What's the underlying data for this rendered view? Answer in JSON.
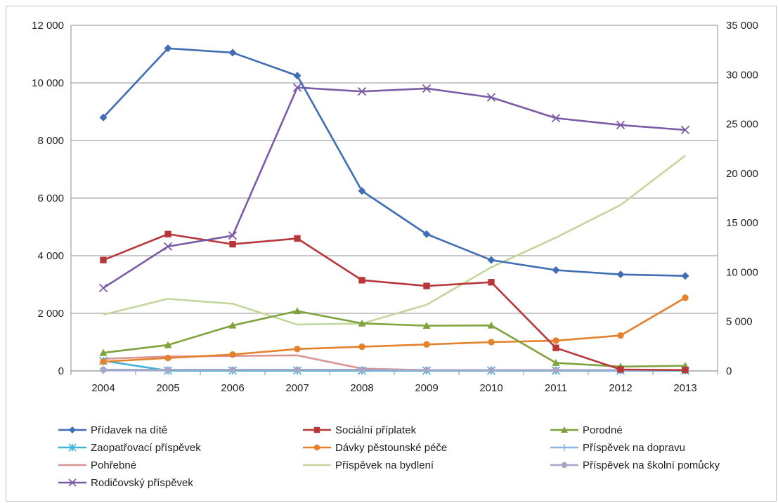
{
  "chart_data": {
    "type": "line",
    "title": "",
    "xlabel": "",
    "ylabel": "",
    "categories": [
      "2004",
      "2005",
      "2006",
      "2007",
      "2008",
      "2009",
      "2010",
      "2011",
      "2012",
      "2013"
    ],
    "y_left": {
      "range": [
        0,
        12000
      ],
      "ticks": [
        "0",
        "2 000",
        "4 000",
        "6 000",
        "8 000",
        "10 000",
        "12 000"
      ]
    },
    "y_right": {
      "range": [
        0,
        35000
      ],
      "ticks": [
        "0",
        "5 000",
        "10 000",
        "15 000",
        "20 000",
        "25 000",
        "30 000",
        "35 000"
      ]
    },
    "grid": true,
    "legend_position": "bottom",
    "series": [
      {
        "name": "Přídavek na dítě",
        "axis": "left",
        "color": "#3f6eb4",
        "marker": "diamond",
        "values": [
          8800,
          11200,
          11050,
          10250,
          6250,
          4750,
          3850,
          3500,
          3350,
          3300
        ]
      },
      {
        "name": "Sociální příplatek",
        "axis": "left",
        "color": "#b8373a",
        "marker": "square",
        "values": [
          3850,
          4750,
          4400,
          4600,
          3150,
          2950,
          3080,
          800,
          50,
          30
        ]
      },
      {
        "name": "Porodné",
        "axis": "left",
        "color": "#7ea33d",
        "marker": "triangle",
        "values": [
          630,
          900,
          1580,
          2080,
          1650,
          1570,
          1580,
          280,
          150,
          180
        ]
      },
      {
        "name": "Zaopatřovací příspěvek",
        "axis": "left",
        "color": "#3fb1d9",
        "marker": "star",
        "values": [
          350,
          10,
          10,
          10,
          10,
          10,
          10,
          10,
          10,
          10
        ]
      },
      {
        "name": "Dávky pěstounské péče",
        "axis": "left",
        "color": "#e5802c",
        "marker": "circle",
        "values": [
          320,
          450,
          570,
          760,
          840,
          920,
          1000,
          1050,
          1230,
          2540
        ]
      },
      {
        "name": "Příspěvek na dopravu",
        "axis": "left",
        "color": "#8eb4e3",
        "marker": "plus",
        "values": [
          20,
          20,
          20,
          20,
          20,
          20,
          20,
          20,
          20,
          20
        ]
      },
      {
        "name": "Pohřebné",
        "axis": "left",
        "color": "#d99594",
        "marker": "none",
        "values": [
          420,
          500,
          520,
          540,
          80,
          30,
          30,
          30,
          30,
          30
        ]
      },
      {
        "name": "Příspěvek na bydlení",
        "axis": "right",
        "color": "#c3d69b",
        "marker": "none",
        "values": [
          5700,
          7300,
          6800,
          4700,
          4800,
          6700,
          10500,
          13500,
          16800,
          21800
        ]
      },
      {
        "name": "Příspěvek na školní pomůcky",
        "axis": "left",
        "color": "#a6a6c8",
        "marker": "circle",
        "values": [
          40,
          40,
          40,
          40,
          40,
          30,
          30,
          30,
          30,
          30
        ]
      },
      {
        "name": "Rodičovský příspěvek",
        "axis": "right",
        "color": "#7b5ba6",
        "marker": "x",
        "values": [
          8400,
          12600,
          13700,
          28700,
          28300,
          28600,
          27700,
          25600,
          24900,
          24400
        ]
      }
    ]
  }
}
